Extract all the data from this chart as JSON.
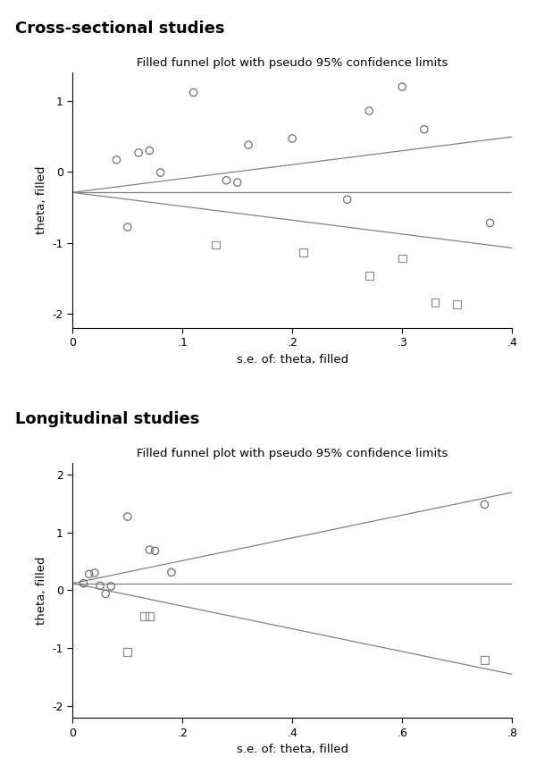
{
  "plot1": {
    "title_main": "Cross-sectional studies",
    "title_sub": "Filled funnel plot with pseudo 95% confidence limits",
    "xlabel": "s.e. of: theta, filled",
    "ylabel": "theta, filled",
    "xlim": [
      0,
      0.4
    ],
    "ylim": [
      -2.2,
      1.4
    ],
    "xticks": [
      0,
      0.1,
      0.2,
      0.3,
      0.4
    ],
    "xtick_labels": [
      "0",
      ".1",
      ".2",
      ".3",
      ".4"
    ],
    "yticks": [
      -2,
      -1,
      0,
      1
    ],
    "theta_hat": -0.29,
    "ci_upper_slope": 1.96,
    "ci_lower_slope": -1.96,
    "open_points": [
      [
        0.04,
        0.17
      ],
      [
        0.05,
        -0.78
      ],
      [
        0.06,
        0.27
      ],
      [
        0.07,
        0.3
      ],
      [
        0.08,
        -0.01
      ],
      [
        0.11,
        1.12
      ],
      [
        0.14,
        -0.12
      ],
      [
        0.15,
        -0.15
      ],
      [
        0.16,
        0.38
      ],
      [
        0.2,
        0.47
      ],
      [
        0.25,
        -0.39
      ],
      [
        0.27,
        0.86
      ],
      [
        0.3,
        1.2
      ],
      [
        0.32,
        0.6
      ],
      [
        0.38,
        -0.72
      ]
    ],
    "filled_points": [
      [
        0.13,
        -1.03
      ],
      [
        0.21,
        -1.14
      ],
      [
        0.27,
        -1.47
      ],
      [
        0.3,
        -1.22
      ],
      [
        0.33,
        -1.84
      ],
      [
        0.35,
        -1.87
      ]
    ]
  },
  "plot2": {
    "title_main": "Longitudinal studies",
    "title_sub": "Filled funnel plot with pseudo 95% confidence limits",
    "xlabel": "s.e. of: theta, filled",
    "ylabel": "theta, filled",
    "xlim": [
      0,
      0.8
    ],
    "ylim": [
      -2.2,
      2.2
    ],
    "xticks": [
      0,
      0.2,
      0.4,
      0.6,
      0.8
    ],
    "xtick_labels": [
      "0",
      ".2",
      ".4",
      ".6",
      ".8"
    ],
    "yticks": [
      -2,
      -1,
      0,
      1,
      2
    ],
    "theta_hat": 0.12,
    "ci_upper_slope": 1.96,
    "ci_lower_slope": -1.96,
    "open_points": [
      [
        0.02,
        0.12
      ],
      [
        0.03,
        0.28
      ],
      [
        0.04,
        0.3
      ],
      [
        0.05,
        0.08
      ],
      [
        0.06,
        -0.06
      ],
      [
        0.07,
        0.07
      ],
      [
        0.1,
        1.27
      ],
      [
        0.14,
        0.7
      ],
      [
        0.15,
        0.68
      ],
      [
        0.18,
        0.31
      ],
      [
        0.75,
        1.48
      ]
    ],
    "filled_points": [
      [
        0.1,
        -1.06
      ],
      [
        0.13,
        -0.45
      ],
      [
        0.14,
        -0.45
      ],
      [
        0.75,
        -1.2
      ]
    ]
  },
  "line_color": "#808080",
  "open_marker_color": "#707070",
  "filled_marker_color": "#909090",
  "marker_size": 6,
  "background_color": "#ffffff",
  "title_fontsize": 13,
  "subtitle_fontsize": 9.5,
  "label_fontsize": 9.5,
  "tick_fontsize": 9
}
